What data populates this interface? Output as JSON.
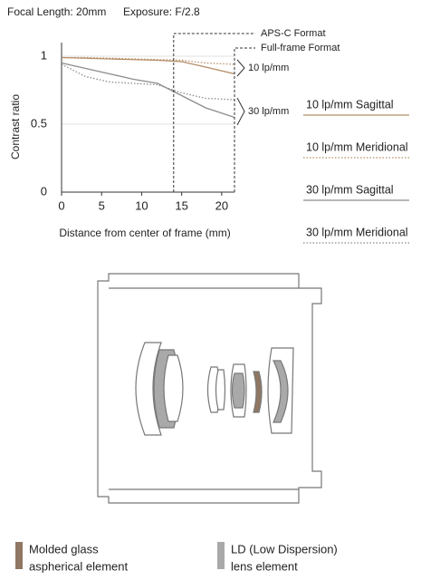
{
  "header": {
    "focal_length": "Focal Length: 20mm",
    "exposure": "Exposure: F/2.8"
  },
  "chart_data": {
    "type": "line",
    "x_label": "Distance from center of frame (mm)",
    "y_label": "Contrast ratio",
    "x": [
      0,
      3,
      6,
      9,
      12,
      15,
      18,
      21.6
    ],
    "series": [
      {
        "name": "10 lp/mm Sagittal",
        "color": "#b58d66",
        "dash": "solid",
        "values": [
          0.99,
          0.985,
          0.98,
          0.975,
          0.97,
          0.96,
          0.92,
          0.87
        ]
      },
      {
        "name": "10 lp/mm Meridional",
        "color": "#b58d66",
        "dash": "dotted",
        "values": [
          0.99,
          0.99,
          0.985,
          0.98,
          0.975,
          0.97,
          0.95,
          0.94
        ]
      },
      {
        "name": "30 lp/mm Sagittal",
        "color": "#8c8c8c",
        "dash": "solid",
        "values": [
          0.95,
          0.91,
          0.87,
          0.83,
          0.8,
          0.71,
          0.62,
          0.55
        ]
      },
      {
        "name": "30 lp/mm Meridional",
        "color": "#8c8c8c",
        "dash": "dotted",
        "values": [
          0.94,
          0.85,
          0.81,
          0.8,
          0.79,
          0.73,
          0.69,
          0.68
        ]
      }
    ],
    "xlim": [
      0,
      21.6
    ],
    "ylim": [
      0,
      1.1
    ],
    "xticks": [
      0,
      5,
      10,
      15,
      20
    ],
    "yticks": [
      0,
      0.5,
      1
    ],
    "grid": true,
    "formats": [
      {
        "text": "APS-C Format",
        "x": 14
      },
      {
        "text": "Full-frame Format",
        "x": 21.6
      }
    ],
    "group_labels": [
      "10 lp/mm",
      "30 lp/mm"
    ]
  },
  "lens_legend": [
    {
      "lines": [
        "Molded glass",
        "aspherical element"
      ],
      "color": "#8f7763"
    },
    {
      "lines": [
        "LD (Low Dispersion)",
        "lens element"
      ],
      "color": "#a9a9a9"
    }
  ]
}
